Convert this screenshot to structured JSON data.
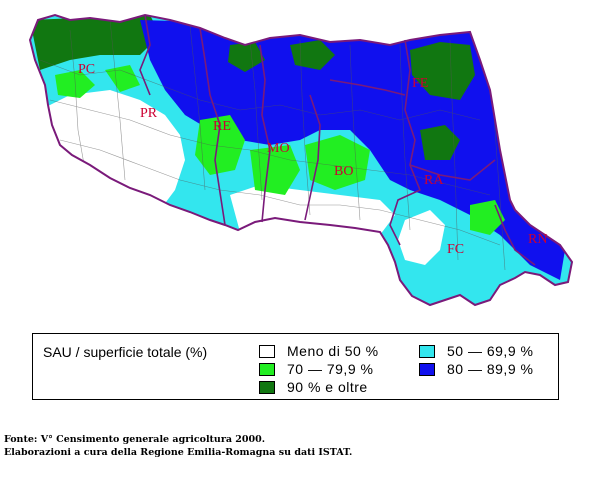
{
  "map": {
    "provinces": [
      {
        "code": "PC"
      },
      {
        "code": "PR"
      },
      {
        "code": "RE"
      },
      {
        "code": "MO"
      },
      {
        "code": "BO"
      },
      {
        "code": "FE"
      },
      {
        "code": "RA"
      },
      {
        "code": "FC"
      },
      {
        "code": "RN"
      }
    ]
  },
  "legend": {
    "title": "SAU / superficie totale (%)",
    "items": [
      {
        "label": "Meno di 50 %",
        "color": "#ffffff"
      },
      {
        "label": "50  —  69,9  %",
        "color": "#33e6ee"
      },
      {
        "label": "70  —  79,9  %",
        "color": "#22ee22"
      },
      {
        "label": "80  —  89,9  %",
        "color": "#1010ee"
      },
      {
        "label": "90  %  e  oltre",
        "color": "#117711"
      }
    ]
  },
  "source": {
    "line1": "Fonte: V° Censimento generale agricoltura 2000.",
    "line2": "Elaborazioni a cura della Regione Emilia-Romagna su dati ISTAT."
  },
  "colors": {
    "border": "#7a1a7a",
    "label": "#cc0033",
    "light_blue": "#33e6ee",
    "green": "#22ee22",
    "blue": "#1010ee",
    "dark_green": "#117711"
  }
}
